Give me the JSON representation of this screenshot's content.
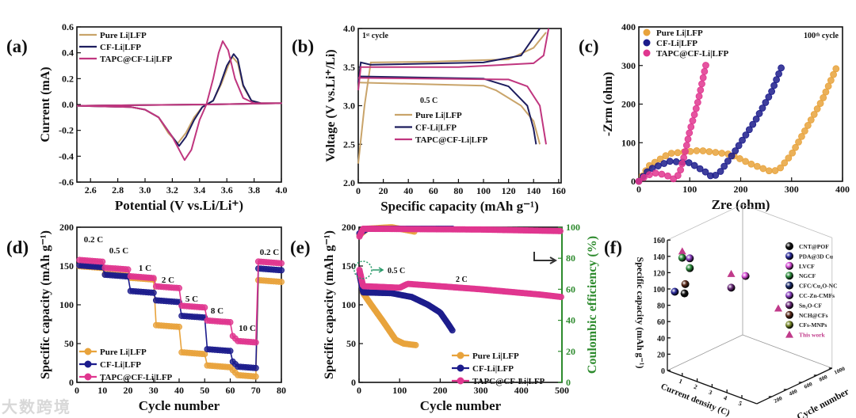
{
  "watermark": "大数跨境",
  "colors": {
    "pure": "#e8a33c",
    "cf": "#1c1c8c",
    "tapc": "#e0368f",
    "pure_line": "#c9a46a",
    "cf_line": "#1d1d5e",
    "tapc_line": "#c0367f",
    "ce_axis": "#2e8b2e"
  },
  "chart_data": [
    {
      "id": "a",
      "panel_label": "(a)",
      "type": "line",
      "xlabel": "Potential (V vs.Li/Li⁺)",
      "ylabel": "Current (mA)",
      "xlim": [
        2.5,
        4.0
      ],
      "ylim": [
        -0.6,
        0.6
      ],
      "xticks": [
        "2.6",
        "2.8",
        "3.0",
        "3.2",
        "3.4",
        "3.6",
        "3.8",
        "4.0"
      ],
      "yticks": [
        "-0.6",
        "-0.4",
        "-0.2",
        "0.0",
        "0.2",
        "0.4",
        "0.6"
      ],
      "series": [
        {
          "name": "Pure Li|LFP",
          "color": "pure_line",
          "points": [
            [
              2.5,
              -0.01
            ],
            [
              2.9,
              -0.02
            ],
            [
              3.0,
              -0.04
            ],
            [
              3.1,
              -0.1
            ],
            [
              3.17,
              -0.22
            ],
            [
              3.24,
              -0.3
            ],
            [
              3.3,
              -0.22
            ],
            [
              3.36,
              -0.1
            ],
            [
              3.42,
              -0.02
            ],
            [
              3.5,
              0.03
            ],
            [
              3.56,
              0.16
            ],
            [
              3.61,
              0.3
            ],
            [
              3.64,
              0.37
            ],
            [
              3.68,
              0.32
            ],
            [
              3.72,
              0.14
            ],
            [
              3.78,
              0.03
            ],
            [
              3.85,
              0.01
            ],
            [
              4.0,
              0.01
            ],
            [
              3.45,
              0.0
            ],
            [
              2.5,
              -0.01
            ]
          ]
        },
        {
          "name": "CF-Li|LFP",
          "color": "cf_line",
          "points": [
            [
              2.5,
              -0.01
            ],
            [
              2.9,
              -0.02
            ],
            [
              3.0,
              -0.04
            ],
            [
              3.1,
              -0.1
            ],
            [
              3.18,
              -0.22
            ],
            [
              3.25,
              -0.32
            ],
            [
              3.3,
              -0.25
            ],
            [
              3.36,
              -0.12
            ],
            [
              3.42,
              -0.02
            ],
            [
              3.5,
              0.03
            ],
            [
              3.55,
              0.15
            ],
            [
              3.6,
              0.3
            ],
            [
              3.65,
              0.39
            ],
            [
              3.68,
              0.35
            ],
            [
              3.72,
              0.15
            ],
            [
              3.78,
              0.03
            ],
            [
              3.85,
              0.01
            ],
            [
              4.0,
              0.01
            ],
            [
              3.45,
              0.0
            ],
            [
              2.5,
              -0.01
            ]
          ]
        },
        {
          "name": "TAPC@CF-Li|LFP",
          "color": "tapc_line",
          "points": [
            [
              2.5,
              -0.01
            ],
            [
              2.9,
              -0.02
            ],
            [
              3.0,
              -0.04
            ],
            [
              3.1,
              -0.1
            ],
            [
              3.2,
              -0.25
            ],
            [
              3.29,
              -0.43
            ],
            [
              3.34,
              -0.35
            ],
            [
              3.4,
              -0.12
            ],
            [
              3.45,
              0.0
            ],
            [
              3.5,
              0.2
            ],
            [
              3.54,
              0.4
            ],
            [
              3.57,
              0.49
            ],
            [
              3.61,
              0.42
            ],
            [
              3.66,
              0.2
            ],
            [
              3.72,
              0.05
            ],
            [
              3.8,
              0.01
            ],
            [
              4.0,
              0.01
            ],
            [
              3.45,
              0.0
            ],
            [
              2.5,
              -0.01
            ]
          ]
        }
      ]
    },
    {
      "id": "b",
      "panel_label": "(b)",
      "type": "line",
      "xlabel": "Specific capacity (mAh g⁻¹)",
      "ylabel": "Voltage (V vs.Li⁺/Li)",
      "xlim": [
        0,
        162
      ],
      "ylim": [
        2.0,
        4.0
      ],
      "xticks": [
        "0",
        "20",
        "40",
        "60",
        "80",
        "100",
        "120",
        "140",
        "160"
      ],
      "yticks": [
        "2.0",
        "2.5",
        "3.0",
        "3.5",
        "4.0"
      ],
      "annotations": [
        "1ˢᵗ cycle",
        "0.5 C"
      ],
      "series": [
        {
          "name": "Pure Li|LFP",
          "color": "pure_line",
          "charge": [
            [
              0,
              2.25
            ],
            [
              5,
              3.0
            ],
            [
              10,
              3.56
            ],
            [
              60,
              3.57
            ],
            [
              120,
              3.6
            ],
            [
              140,
              3.75
            ],
            [
              150,
              3.95
            ]
          ],
          "discharge": [
            [
              0,
              3.3
            ],
            [
              100,
              3.26
            ],
            [
              110,
              3.2
            ],
            [
              130,
              3.0
            ],
            [
              140,
              2.8
            ],
            [
              145,
              2.5
            ]
          ]
        },
        {
          "name": "CF-Li|LFP",
          "color": "cf_line",
          "charge": [
            [
              0,
              3.3
            ],
            [
              2,
              3.56
            ],
            [
              10,
              3.53
            ],
            [
              100,
              3.56
            ],
            [
              130,
              3.65
            ],
            [
              145,
              4.0
            ]
          ],
          "discharge": [
            [
              0,
              3.38
            ],
            [
              100,
              3.35
            ],
            [
              120,
              3.25
            ],
            [
              135,
              3.0
            ],
            [
              140,
              2.7
            ],
            [
              142,
              2.5
            ]
          ]
        },
        {
          "name": "TAPC@CF-Li|LFP",
          "color": "tapc_line",
          "charge": [
            [
              0,
              3.2
            ],
            [
              2,
              3.5
            ],
            [
              80,
              3.5
            ],
            [
              140,
              3.55
            ],
            [
              148,
              3.65
            ],
            [
              152,
              4.0
            ]
          ],
          "discharge": [
            [
              0,
              3.36
            ],
            [
              120,
              3.34
            ],
            [
              135,
              3.25
            ],
            [
              145,
              3.0
            ],
            [
              150,
              2.5
            ]
          ]
        }
      ]
    },
    {
      "id": "c",
      "panel_label": "(c)",
      "type": "scatter",
      "xlabel": "Zre (ohm)",
      "ylabel": "-Zrm (ohm)",
      "xlim": [
        0,
        400
      ],
      "ylim": [
        0,
        400
      ],
      "xticks": [
        "0",
        "100",
        "200",
        "300",
        "400"
      ],
      "yticks": [
        "0",
        "100",
        "200",
        "300",
        "400"
      ],
      "annotations": [
        "100ᵗʰ cycle"
      ],
      "series": [
        {
          "name": "Pure Li|LFP",
          "color": "pure",
          "points": [
            [
              0,
              0
            ],
            [
              20,
              40
            ],
            [
              60,
              72
            ],
            [
              120,
              80
            ],
            [
              180,
              70
            ],
            [
              220,
              45
            ],
            [
              260,
              25
            ],
            [
              275,
              30
            ],
            [
              300,
              70
            ],
            [
              330,
              140
            ],
            [
              360,
              210
            ],
            [
              390,
              300
            ]
          ]
        },
        {
          "name": "CF-Li|LFP",
          "color": "cf",
          "points": [
            [
              0,
              0
            ],
            [
              20,
              30
            ],
            [
              60,
              52
            ],
            [
              100,
              48
            ],
            [
              130,
              25
            ],
            [
              145,
              10
            ],
            [
              160,
              25
            ],
            [
              190,
              80
            ],
            [
              230,
              160
            ],
            [
              260,
              230
            ],
            [
              283,
              305
            ]
          ]
        },
        {
          "name": "TAPC@CF-Li|LFP",
          "color": "tapc",
          "points": [
            [
              0,
              0
            ],
            [
              15,
              15
            ],
            [
              35,
              22
            ],
            [
              55,
              15
            ],
            [
              70,
              5
            ],
            [
              80,
              20
            ],
            [
              90,
              70
            ],
            [
              100,
              130
            ],
            [
              115,
              200
            ],
            [
              125,
              260
            ],
            [
              133,
              310
            ]
          ]
        }
      ]
    },
    {
      "id": "d",
      "panel_label": "(d)",
      "type": "scatter",
      "xlabel": "Cycle number",
      "ylabel": "Specific capacity (mAh g⁻¹)",
      "xlim": [
        0,
        80
      ],
      "ylim": [
        0,
        200
      ],
      "xticks": [
        "0",
        "10",
        "20",
        "30",
        "40",
        "50",
        "60",
        "70",
        "80"
      ],
      "yticks": [
        "0",
        "50",
        "100",
        "150",
        "200"
      ],
      "rates": [
        "0.2 C",
        "0.5 C",
        "1 C",
        "2 C",
        "5 C",
        "8 C",
        "10 C",
        "0.2 C"
      ],
      "series": [
        {
          "name": "Pure Li|LFP",
          "color": "pure",
          "levels": [
            150,
            140,
            135,
            74,
            39,
            22,
            10,
            132
          ]
        },
        {
          "name": "CF-Li|LFP",
          "color": "cf",
          "levels": [
            151,
            139,
            118,
            106,
            86,
            43,
            21,
            147
          ]
        },
        {
          "name": "TAPC@CF-Li|LFP",
          "color": "tapc",
          "levels": [
            158,
            148,
            137,
            124,
            99,
            80,
            54,
            156
          ]
        }
      ]
    },
    {
      "id": "e",
      "panel_label": "(e)",
      "type": "scatter",
      "xlabel": "Cycle number",
      "ylabel": "Specific capacity (mAh g⁻¹)",
      "y2label": "Coulombic efficiency (%)",
      "xlim": [
        0,
        500
      ],
      "ylim": [
        0,
        200
      ],
      "y2lim": [
        0,
        100
      ],
      "xticks": [
        "0",
        "100",
        "200",
        "300",
        "400",
        "500"
      ],
      "yticks": [
        "0",
        "50",
        "100",
        "150",
        "200"
      ],
      "y2ticks": [
        "0",
        "20",
        "40",
        "60",
        "80",
        "100"
      ],
      "annotations": [
        "0.5 C",
        "2 C"
      ],
      "series": [
        {
          "name": "Pure Li|LFP",
          "color": "pure",
          "capacity": [
            [
              1,
              140
            ],
            [
              10,
              115
            ],
            [
              30,
              100
            ],
            [
              60,
              78
            ],
            [
              90,
              55
            ],
            [
              110,
              50
            ],
            [
              140,
              48
            ]
          ],
          "ce": [
            [
              1,
              95
            ],
            [
              20,
              99
            ],
            [
              80,
              100
            ],
            [
              140,
              97
            ]
          ]
        },
        {
          "name": "CF-Li|LFP",
          "color": "cf",
          "capacity": [
            [
              1,
              140
            ],
            [
              10,
              116
            ],
            [
              80,
              115
            ],
            [
              130,
              110
            ],
            [
              170,
              100
            ],
            [
              200,
              90
            ],
            [
              220,
              75
            ],
            [
              230,
              67
            ]
          ],
          "ce": [
            [
              1,
              96
            ],
            [
              20,
              99
            ],
            [
              230,
              99
            ]
          ]
        },
        {
          "name": "TAPC@CF-Li|LFP",
          "color": "tapc",
          "capacity": [
            [
              1,
              145
            ],
            [
              10,
              124
            ],
            [
              100,
              122
            ],
            [
              120,
              127
            ],
            [
              300,
              120
            ],
            [
              450,
              113
            ],
            [
              500,
              110
            ]
          ],
          "ce": [
            [
              1,
              94
            ],
            [
              10,
              99
            ],
            [
              300,
              98.5
            ],
            [
              500,
              97.5
            ]
          ]
        }
      ]
    },
    {
      "id": "f",
      "panel_label": "(f)",
      "type": "scatter3d",
      "xlabel": "Current density (C)",
      "ylabel": "Cycle number",
      "zlabel": "Specific capacity (mAh g⁻¹)",
      "zticks": [
        "0",
        "20",
        "40",
        "60",
        "80",
        "100",
        "120",
        "140",
        "160"
      ],
      "xticks": [
        "1",
        "2",
        "3",
        "4",
        "5"
      ],
      "yticks": [
        "200",
        "400",
        "600",
        "800",
        "1000"
      ],
      "legend": [
        {
          "name": "CNT@POF",
          "color": "#111111",
          "marker": "sphere"
        },
        {
          "name": "PDA@3D Cu",
          "color": "#2a2a9a",
          "marker": "sphere"
        },
        {
          "name": "LVCF",
          "color": "#d84fd8",
          "marker": "sphere"
        },
        {
          "name": "NGCF",
          "color": "#2f8f3f",
          "marker": "sphere"
        },
        {
          "name": "CFC/Cu₂O-NC",
          "color": "#1a2a6a",
          "marker": "sphere"
        },
        {
          "name": "CC-Zn-CMFs",
          "color": "#8a3fc0",
          "marker": "sphere"
        },
        {
          "name": "Sn₂O-CF",
          "color": "#6a2a7a",
          "marker": "sphere"
        },
        {
          "name": "NCH@CFs",
          "color": "#5a2a1a",
          "marker": "sphere"
        },
        {
          "name": "CFs-MNPs",
          "color": "#7a8a2a",
          "marker": "sphere"
        },
        {
          "name": "This work",
          "color": "#c03a8a",
          "marker": "triangle"
        }
      ],
      "points": [
        {
          "ref": 9,
          "c": 1,
          "cycles": 0,
          "cap": 153
        },
        {
          "ref": 3,
          "c": 1,
          "cycles": 0,
          "cap": 145
        },
        {
          "ref": 5,
          "c": 1,
          "cycles": 100,
          "cap": 140
        },
        {
          "ref": 3,
          "c": 1,
          "cycles": 100,
          "cap": 128
        },
        {
          "ref": 7,
          "c": 1,
          "cycles": 40,
          "cap": 111
        },
        {
          "ref": 0,
          "c": 1,
          "cycles": 30,
          "cap": 100
        },
        {
          "ref": 1,
          "c": 0.5,
          "cycles": 0,
          "cap": 100
        },
        {
          "ref": 9,
          "c": 1,
          "cycles": 650,
          "cap": 97
        },
        {
          "ref": 6,
          "c": 1,
          "cycles": 650,
          "cap": 80
        },
        {
          "ref": 2,
          "c": 1,
          "cycles": 840,
          "cap": 86
        },
        {
          "ref": 9,
          "c": 5,
          "cycles": 484,
          "cap": 89
        }
      ]
    }
  ]
}
